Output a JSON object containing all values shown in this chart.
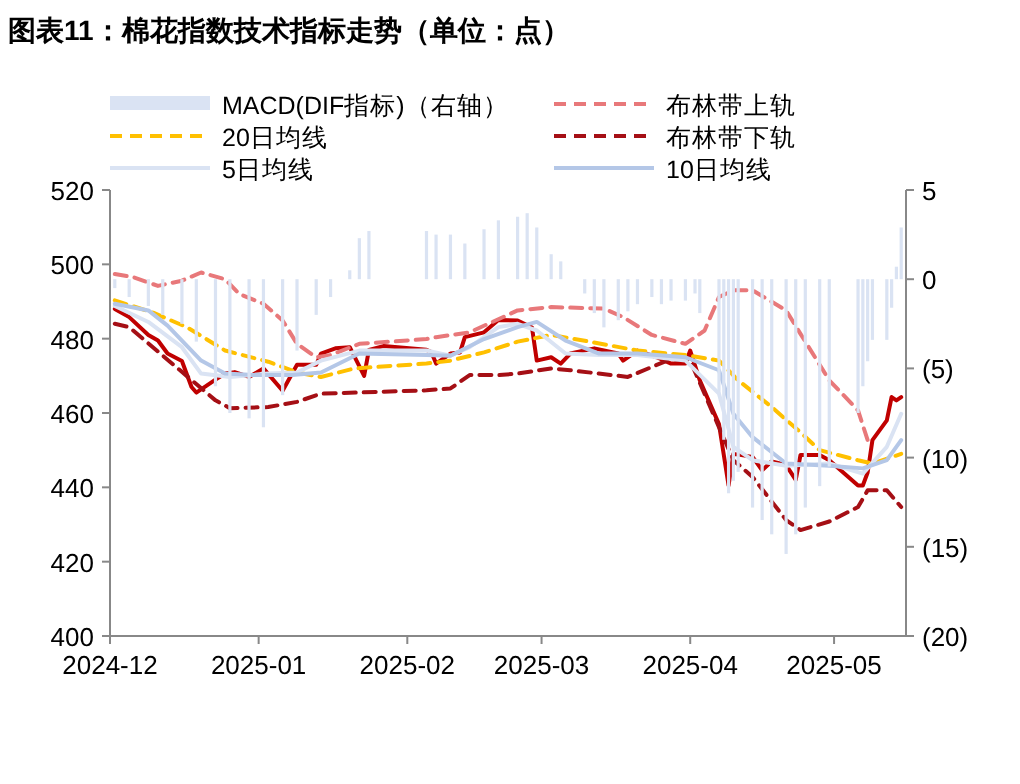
{
  "chart_data": {
    "type": "line",
    "title": "图表11：棉花指数技术指标走势（单位：点）",
    "xlim": [
      "2024-12-01",
      "2025-05-16"
    ],
    "xticks": [
      "2024-12",
      "2025-01",
      "2025-02",
      "2025-03",
      "2025-04",
      "2025-05"
    ],
    "ylim": [
      400,
      520
    ],
    "yticks": [
      400,
      420,
      440,
      460,
      480,
      500,
      520
    ],
    "y2lim": [
      -20,
      5
    ],
    "y2ticks": [
      {
        "value": -20,
        "label": "(20)"
      },
      {
        "value": -15,
        "label": "(15)"
      },
      {
        "value": -10,
        "label": "(10)"
      },
      {
        "value": -5,
        "label": "(5)"
      },
      0,
      5
    ],
    "legend": "top",
    "grid": false,
    "series": [
      {
        "name": "MACD(DIF指标)（右轴）",
        "type": "bar",
        "axis": "y2",
        "color": "#dae3f3",
        "x": [
          "2024-12-02",
          "2024-12-05",
          "2024-12-09",
          "2024-12-12",
          "2024-12-16",
          "2024-12-19",
          "2024-12-23",
          "2024-12-26",
          "2024-12-30",
          "2025-01-02",
          "2025-01-06",
          "2025-01-09",
          "2025-01-13",
          "2025-01-16",
          "2025-01-20",
          "2025-01-22",
          "2025-01-24",
          "2025-02-05",
          "2025-02-07",
          "2025-02-10",
          "2025-02-13",
          "2025-02-17",
          "2025-02-20",
          "2025-02-24",
          "2025-02-26",
          "2025-02-28",
          "2025-03-03",
          "2025-03-05",
          "2025-03-10",
          "2025-03-12",
          "2025-03-14",
          "2025-03-17",
          "2025-03-19",
          "2025-03-21",
          "2025-03-24",
          "2025-03-26",
          "2025-03-28",
          "2025-03-31",
          "2025-04-02",
          "2025-04-03",
          "2025-04-07",
          "2025-04-08",
          "2025-04-09",
          "2025-04-10",
          "2025-04-11",
          "2025-04-14",
          "2025-04-16",
          "2025-04-18",
          "2025-04-21",
          "2025-04-23",
          "2025-04-25",
          "2025-04-28",
          "2025-04-30",
          "2025-05-06",
          "2025-05-07",
          "2025-05-08",
          "2025-05-09",
          "2025-05-12",
          "2025-05-13",
          "2025-05-14",
          "2025-05-15"
        ],
        "values": [
          -0.5,
          -1,
          -1.5,
          -2,
          -2.5,
          -3.5,
          -6,
          -7.5,
          -7.8,
          -8.3,
          -6.5,
          -4,
          -2,
          -1,
          0.5,
          2.3,
          2.7,
          2.7,
          2.5,
          2.5,
          2,
          2.8,
          3.3,
          3.5,
          3.7,
          2.9,
          1.4,
          1,
          -0.8,
          -1.9,
          -2.7,
          -2.3,
          -1.8,
          -1.4,
          -1,
          -1.4,
          -1.2,
          -1.2,
          -0.8,
          -1.9,
          -6.4,
          -9,
          -12,
          -11.3,
          -10.8,
          -12.8,
          -13.5,
          -14.3,
          -15.4,
          -14.3,
          -12.8,
          -11.6,
          -10.5,
          -7.5,
          -6,
          -4.6,
          -3.4,
          -3.4,
          -1.6,
          0.7,
          2.9
        ]
      },
      {
        "color": "#c00000",
        "x": [
          "2024-12-02",
          "2024-12-05",
          "2024-12-09",
          "2024-12-11",
          "2024-12-13",
          "2024-12-16",
          "2024-12-18",
          "2024-12-19",
          "2024-12-23",
          "2024-12-25",
          "2024-12-27",
          "2024-12-30",
          "2025-01-02",
          "2025-01-06",
          "2025-01-09",
          "2025-01-13",
          "2025-01-14",
          "2025-01-17",
          "2025-01-20",
          "2025-01-23",
          "2025-01-24",
          "2025-01-27",
          "2025-02-05",
          "2025-02-06",
          "2025-02-07",
          "2025-02-10",
          "2025-02-12",
          "2025-02-13",
          "2025-02-17",
          "2025-02-20",
          "2025-02-24",
          "2025-02-27",
          "2025-02-28",
          "2025-03-03",
          "2025-03-05",
          "2025-03-07",
          "2025-03-12",
          "2025-03-17",
          "2025-03-18",
          "2025-03-21",
          "2025-03-25",
          "2025-03-28",
          "2025-03-31",
          "2025-04-01",
          "2025-04-03",
          "2025-04-07",
          "2025-04-09",
          "2025-04-10",
          "2025-04-14",
          "2025-04-16",
          "2025-04-18",
          "2025-04-21",
          "2025-04-23",
          "2025-04-24",
          "2025-04-28",
          "2025-04-30",
          "2025-05-06",
          "2025-05-07",
          "2025-05-08",
          "2025-05-09",
          "2025-05-12",
          "2025-05-13",
          "2025-05-14",
          "2025-05-15"
        ],
        "values": [
          488,
          485.8,
          481,
          479.5,
          476,
          474,
          467,
          465.5,
          469,
          470.6,
          471,
          469.7,
          472,
          466,
          473,
          473,
          476,
          477.4,
          477.7,
          470,
          477,
          478,
          477,
          476.4,
          473.3,
          476,
          476.3,
          480.4,
          481.7,
          485,
          484.9,
          483,
          474.1,
          475,
          473.3,
          476,
          477.4,
          476,
          474.1,
          476.8,
          475,
          473.3,
          473.3,
          476.8,
          468.8,
          457,
          440.5,
          449,
          448.2,
          444.6,
          447,
          446,
          442,
          448.7,
          448.7,
          447.3,
          440.5,
          440.5,
          444,
          452.7,
          458,
          464.3,
          463.4,
          464.3
        ]
      },
      {
        "name": "布林带上轨",
        "color": "#e8787a",
        "line_style": "dashed",
        "x": [
          "2024-12-02",
          "2024-12-06",
          "2024-12-11",
          "2024-12-16",
          "2024-12-20",
          "2024-12-25",
          "2024-12-28",
          "2025-01-02",
          "2025-01-06",
          "2025-01-09",
          "2025-01-13",
          "2025-01-16",
          "2025-01-22",
          "2025-02-05",
          "2025-02-07",
          "2025-02-14",
          "2025-02-24",
          "2025-03-03",
          "2025-03-14",
          "2025-03-18",
          "2025-03-24",
          "2025-03-31",
          "2025-04-04",
          "2025-04-07",
          "2025-04-10",
          "2025-04-14",
          "2025-04-21",
          "2025-04-24",
          "2025-04-30",
          "2025-05-06",
          "2025-05-08",
          "2025-05-09"
        ],
        "values": [
          497.4,
          496.5,
          494.2,
          495.6,
          497.8,
          496,
          492,
          489.4,
          484.9,
          478.6,
          475,
          475.6,
          478.6,
          479.9,
          480.4,
          481.7,
          487.6,
          488.5,
          488.1,
          485.8,
          481,
          478.6,
          482.2,
          491.2,
          493,
          493,
          487.6,
          481.3,
          468.8,
          460.7,
          452.7,
          451.8
        ]
      },
      {
        "name": "20日均线",
        "color": "#ffc000",
        "line_style": "dashed",
        "x": [
          "2024-12-02",
          "2024-12-10",
          "2024-12-17",
          "2024-12-25",
          "2025-01-03",
          "2025-01-09",
          "2025-01-14",
          "2025-01-21",
          "2025-02-05",
          "2025-02-10",
          "2025-02-17",
          "2025-02-24",
          "2025-03-03",
          "2025-03-11",
          "2025-03-21",
          "2025-03-31",
          "2025-04-07",
          "2025-04-11",
          "2025-04-18",
          "2025-04-24",
          "2025-04-28",
          "2025-05-06",
          "2025-05-09",
          "2025-05-15"
        ],
        "values": [
          490.3,
          487,
          483.1,
          476.8,
          473.8,
          470.9,
          469.7,
          472,
          473.3,
          474.1,
          476.3,
          479.2,
          481,
          479.2,
          476.8,
          475.6,
          474.1,
          468.8,
          461.6,
          454.8,
          450,
          447.3,
          446.4,
          449
        ]
      },
      {
        "name": "布林带下轨",
        "color": "#a50f15",
        "line_style": "dashed",
        "x": [
          "2024-12-02",
          "2024-12-05",
          "2024-12-23",
          "2024-12-26",
          "2025-01-03",
          "2025-01-09",
          "2025-01-14",
          "2025-02-05",
          "2025-02-10",
          "2025-02-14",
          "2025-02-20",
          "2025-02-24",
          "2025-03-03",
          "2025-03-07",
          "2025-03-19",
          "2025-03-24",
          "2025-03-28",
          "2025-04-01",
          "2025-04-07",
          "2025-04-10",
          "2025-04-14",
          "2025-04-21",
          "2025-04-24",
          "2025-04-30",
          "2025-05-06",
          "2025-05-08",
          "2025-05-12",
          "2025-05-15"
        ],
        "values": [
          484,
          483.1,
          463.4,
          461.3,
          461.6,
          463,
          465.2,
          466.1,
          466.6,
          470.2,
          470.2,
          470.6,
          472,
          471.5,
          469.7,
          472.4,
          474.5,
          474.1,
          456.2,
          447.3,
          442.8,
          431.2,
          428.5,
          430.8,
          434.7,
          439.2,
          439.2,
          434.7
        ]
      },
      {
        "name": "5日均线",
        "color": "#dae3f3",
        "x": [
          "2024-12-02",
          "2024-12-09",
          "2024-12-16",
          "2024-12-20",
          "2024-12-26",
          "2025-01-03",
          "2025-01-09",
          "2025-01-14",
          "2025-01-22",
          "2025-02-05",
          "2025-02-10",
          "2025-02-14",
          "2025-02-20",
          "2025-02-24",
          "2025-02-28",
          "2025-03-06",
          "2025-03-13",
          "2025-03-21",
          "2025-03-31",
          "2025-04-07",
          "2025-04-10",
          "2025-04-14",
          "2025-04-21",
          "2025-04-30",
          "2025-05-07",
          "2025-05-12",
          "2025-05-15"
        ],
        "values": [
          488.8,
          484.5,
          477.7,
          470.6,
          469.7,
          470.6,
          470.9,
          474.1,
          476.8,
          476.8,
          475.4,
          477.7,
          483.1,
          484,
          482.2,
          476,
          475.6,
          475.6,
          474.1,
          465.2,
          450.9,
          447.3,
          445.8,
          446.4,
          443.7,
          450.9,
          459.8
        ]
      },
      {
        "name": "10日均线",
        "color": "#b4c7e7",
        "x": [
          "2024-12-02",
          "2024-12-09",
          "2024-12-13",
          "2024-12-20",
          "2024-12-25",
          "2024-12-31",
          "2025-01-08",
          "2025-01-14",
          "2025-01-22",
          "2025-02-05",
          "2025-02-10",
          "2025-02-17",
          "2025-02-24",
          "2025-02-28",
          "2025-03-06",
          "2025-03-13",
          "2025-03-21",
          "2025-03-31",
          "2025-04-07",
          "2025-04-10",
          "2025-04-14",
          "2025-04-21",
          "2025-04-30",
          "2025-05-07",
          "2025-05-12",
          "2025-05-15"
        ],
        "values": [
          489.4,
          487.6,
          483.5,
          474.1,
          470.6,
          470.2,
          470.2,
          470.9,
          476,
          475.6,
          475.4,
          479.9,
          483.1,
          484.5,
          479.5,
          476,
          476,
          475,
          471.5,
          459.8,
          453.5,
          446.4,
          445.8,
          445.1,
          447.3,
          452.7
        ]
      }
    ]
  }
}
